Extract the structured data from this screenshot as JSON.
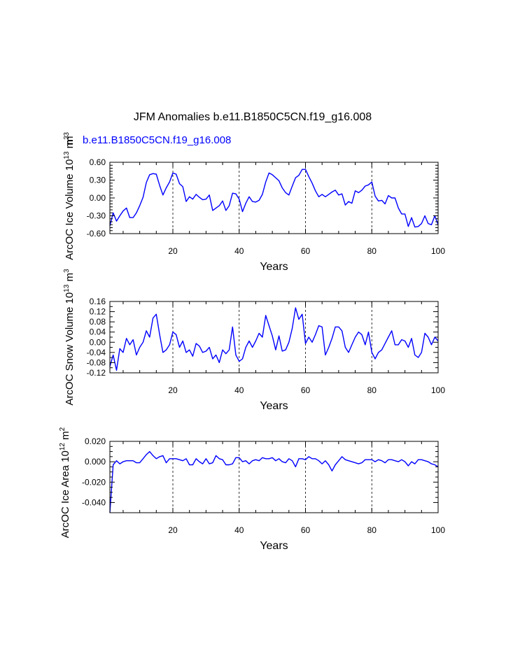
{
  "title": "JFM Anomalies b.e11.B1850C5CN.f19_g16.008",
  "case_label": "b.e11.B1850C5CN.f19_g16.008",
  "colors": {
    "series": "#0000ff",
    "case_label": "#0000ff",
    "axes": "#000000"
  },
  "chart_data": [
    {
      "type": "line",
      "ylabel": {
        "prefix": "ArcOC Ice Volume 10",
        "exp": "13",
        "unit": " m",
        "unit_exp": "3",
        "overlap_unit": "m",
        "overlap_exp": "3"
      },
      "xlabel": "Years",
      "xlim": [
        1,
        100
      ],
      "ylim": [
        -0.6,
        0.6
      ],
      "xticks": [
        20,
        40,
        60,
        80,
        100
      ],
      "yticks": [
        -0.6,
        -0.3,
        0.0,
        0.3,
        0.6
      ],
      "yticklabels": [
        "-0.60",
        "-0.30",
        "0.00",
        "0.30",
        "0.60"
      ],
      "vlines": [
        20,
        40,
        60,
        80
      ],
      "series": [
        {
          "name": "b.e11.B1850C5CN.f19_g16.008",
          "x": [
            1,
            2,
            3,
            4,
            5,
            6,
            7,
            8,
            9,
            10,
            11,
            12,
            13,
            14,
            15,
            16,
            17,
            18,
            19,
            20,
            21,
            22,
            23,
            24,
            25,
            26,
            27,
            28,
            29,
            30,
            31,
            32,
            33,
            34,
            35,
            36,
            37,
            38,
            39,
            40,
            41,
            42,
            43,
            44,
            45,
            46,
            47,
            48,
            49,
            50,
            51,
            52,
            53,
            54,
            55,
            56,
            57,
            58,
            59,
            60,
            61,
            62,
            63,
            64,
            65,
            66,
            67,
            68,
            69,
            70,
            71,
            72,
            73,
            74,
            75,
            76,
            77,
            78,
            79,
            80,
            81,
            82,
            83,
            84,
            85,
            86,
            87,
            88,
            89,
            90,
            91,
            92,
            93,
            94,
            95,
            96,
            97,
            98,
            99,
            100
          ],
          "y": [
            -0.47,
            -0.25,
            -0.39,
            -0.3,
            -0.22,
            -0.17,
            -0.33,
            -0.33,
            -0.25,
            -0.13,
            0.01,
            0.26,
            0.39,
            0.41,
            0.4,
            0.21,
            0.05,
            0.17,
            0.27,
            0.42,
            0.4,
            0.24,
            0.19,
            -0.06,
            0.02,
            -0.02,
            0.06,
            0.01,
            -0.03,
            -0.02,
            0.05,
            -0.21,
            -0.17,
            -0.13,
            -0.05,
            -0.21,
            -0.13,
            0.08,
            0.07,
            -0.02,
            -0.23,
            -0.09,
            0.02,
            -0.06,
            -0.07,
            -0.04,
            0.06,
            0.27,
            0.42,
            0.39,
            0.34,
            0.29,
            0.17,
            0.09,
            0.05,
            0.2,
            0.34,
            0.38,
            0.48,
            0.48,
            0.36,
            0.25,
            0.12,
            0.02,
            0.06,
            0.02,
            0.06,
            0.1,
            0.13,
            0.05,
            0.07,
            -0.12,
            -0.06,
            -0.09,
            0.12,
            0.09,
            0.13,
            0.2,
            0.22,
            0.27,
            0.03,
            -0.05,
            -0.04,
            -0.1,
            0.04,
            0.0,
            0.0,
            -0.17,
            -0.27,
            -0.27,
            -0.48,
            -0.33,
            -0.49,
            -0.48,
            -0.43,
            -0.3,
            -0.43,
            -0.45,
            -0.3,
            -0.45
          ]
        }
      ]
    },
    {
      "type": "line",
      "ylabel": {
        "prefix": "ArcOC Snow Volume 10",
        "exp": "13",
        "unit": " m",
        "unit_exp": "3"
      },
      "xlabel": "Years",
      "xlim": [
        1,
        100
      ],
      "ylim": [
        -0.12,
        0.16
      ],
      "xticks": [
        20,
        40,
        60,
        80,
        100
      ],
      "yticks": [
        -0.12,
        -0.08,
        -0.04,
        0.0,
        0.04,
        0.08,
        0.12,
        0.16
      ],
      "yticklabels": [
        "-0.12",
        "-0.08",
        "-0.04",
        "0.00",
        "0.04",
        "0.08",
        "0.12",
        "0.16"
      ],
      "vlines": [
        20,
        40,
        60,
        80
      ],
      "series": [
        {
          "name": "b.e11.B1850C5CN.f19_g16.008",
          "x": [
            1,
            2,
            3,
            4,
            5,
            6,
            7,
            8,
            9,
            10,
            11,
            12,
            13,
            14,
            15,
            16,
            17,
            18,
            19,
            20,
            21,
            22,
            23,
            24,
            25,
            26,
            27,
            28,
            29,
            30,
            31,
            32,
            33,
            34,
            35,
            36,
            37,
            38,
            39,
            40,
            41,
            42,
            43,
            44,
            45,
            46,
            47,
            48,
            49,
            50,
            51,
            52,
            53,
            54,
            55,
            56,
            57,
            58,
            59,
            60,
            61,
            62,
            63,
            64,
            65,
            66,
            67,
            68,
            69,
            70,
            71,
            72,
            73,
            74,
            75,
            76,
            77,
            78,
            79,
            80,
            81,
            82,
            83,
            84,
            85,
            86,
            87,
            88,
            89,
            90,
            91,
            92,
            93,
            94,
            95,
            96,
            97,
            98,
            99,
            100
          ],
          "y": [
            -0.095,
            -0.05,
            -0.11,
            -0.025,
            -0.04,
            0.015,
            -0.01,
            0.01,
            -0.05,
            -0.02,
            0.0,
            0.045,
            0.02,
            0.095,
            0.11,
            0.03,
            -0.04,
            -0.03,
            -0.01,
            0.04,
            0.03,
            -0.02,
            0.005,
            -0.04,
            -0.03,
            -0.055,
            -0.005,
            -0.015,
            -0.04,
            -0.035,
            -0.02,
            -0.065,
            -0.05,
            -0.08,
            -0.03,
            -0.045,
            -0.03,
            0.06,
            -0.05,
            -0.075,
            -0.065,
            -0.02,
            0.005,
            -0.02,
            0.005,
            0.035,
            0.02,
            0.105,
            0.065,
            0.025,
            -0.03,
            0.025,
            -0.035,
            -0.03,
            0.0,
            0.055,
            0.135,
            0.09,
            0.11,
            -0.005,
            0.02,
            0.0,
            0.03,
            0.065,
            0.06,
            -0.05,
            -0.02,
            0.015,
            0.06,
            0.06,
            0.045,
            -0.02,
            -0.04,
            -0.01,
            0.02,
            0.04,
            0.03,
            -0.01,
            0.04,
            -0.04,
            -0.065,
            -0.04,
            -0.03,
            -0.005,
            0.02,
            0.045,
            -0.01,
            -0.01,
            0.01,
            0.005,
            -0.02,
            0.015,
            -0.05,
            -0.06,
            -0.04,
            0.035,
            0.02,
            -0.01,
            0.02,
            0.005
          ]
        }
      ]
    },
    {
      "type": "line",
      "ylabel": {
        "prefix": "ArcOC Ice Area 10",
        "exp": "12",
        "unit": " m",
        "unit_exp": "2"
      },
      "xlabel": "Years",
      "xlim": [
        1,
        100
      ],
      "ylim": [
        -0.05,
        0.02
      ],
      "xticks": [
        20,
        40,
        60,
        80,
        100
      ],
      "yticks": [
        -0.04,
        -0.02,
        0.0,
        0.02
      ],
      "yticklabels": [
        "-0.040",
        "-0.020",
        "0.000",
        "0.020"
      ],
      "vlines": [
        20,
        40,
        60,
        80
      ],
      "series": [
        {
          "name": "b.e11.B1850C5CN.f19_g16.008",
          "x": [
            1,
            2,
            3,
            4,
            5,
            6,
            7,
            8,
            9,
            10,
            11,
            12,
            13,
            14,
            15,
            16,
            17,
            18,
            19,
            20,
            21,
            22,
            23,
            24,
            25,
            26,
            27,
            28,
            29,
            30,
            31,
            32,
            33,
            34,
            35,
            36,
            37,
            38,
            39,
            40,
            41,
            42,
            43,
            44,
            45,
            46,
            47,
            48,
            49,
            50,
            51,
            52,
            53,
            54,
            55,
            56,
            57,
            58,
            59,
            60,
            61,
            62,
            63,
            64,
            65,
            66,
            67,
            68,
            69,
            70,
            71,
            72,
            73,
            74,
            75,
            76,
            77,
            78,
            79,
            80,
            81,
            82,
            83,
            84,
            85,
            86,
            87,
            88,
            89,
            90,
            91,
            92,
            93,
            94,
            95,
            96,
            97,
            98,
            99,
            100
          ],
          "y": [
            -0.05,
            -0.003,
            0.001,
            -0.002,
            0.0,
            0.001,
            0.001,
            0.001,
            -0.001,
            -0.001,
            0.003,
            0.007,
            0.01,
            0.006,
            0.003,
            0.005,
            0.006,
            -0.001,
            0.003,
            0.003,
            0.003,
            0.002,
            0.001,
            0.003,
            -0.003,
            -0.003,
            0.003,
            0.0,
            -0.002,
            0.003,
            -0.002,
            -0.001,
            0.006,
            0.003,
            0.002,
            -0.003,
            -0.003,
            -0.002,
            0.004,
            0.004,
            0.0,
            0.001,
            -0.002,
            0.001,
            0.002,
            0.001,
            0.004,
            0.003,
            0.003,
            0.004,
            0.001,
            0.003,
            0.0,
            -0.001,
            0.003,
            0.001,
            -0.005,
            0.003,
            0.003,
            0.002,
            0.005,
            0.003,
            0.003,
            0.001,
            -0.002,
            0.001,
            -0.003,
            -0.009,
            -0.003,
            0.001,
            0.005,
            0.002,
            0.001,
            0.0,
            -0.001,
            -0.002,
            -0.001,
            0.002,
            0.002,
            0.002,
            0.0,
            0.002,
            0.001,
            -0.001,
            0.002,
            0.002,
            0.001,
            0.0,
            0.002,
            0.0,
            -0.004,
            0.0,
            -0.002,
            0.002,
            0.002,
            0.001,
            0.0,
            -0.002,
            -0.003,
            -0.005
          ]
        }
      ]
    }
  ]
}
